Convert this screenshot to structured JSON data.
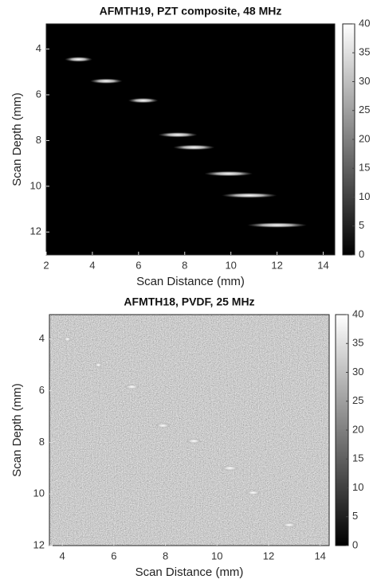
{
  "chart_data": [
    {
      "type": "heatmap",
      "title": "AFMTH19, PZT composite, 48 MHz",
      "x_label": "Scan Distance (mm)",
      "y_label": "Scan Depth (mm)",
      "x": [
        3.4,
        4.6,
        6.2,
        7.7,
        8.4,
        9.9,
        10.8,
        12.0
      ],
      "y": [
        4.45,
        5.4,
        6.25,
        7.75,
        8.3,
        9.45,
        10.4,
        11.7
      ],
      "widths": [
        1.2,
        1.4,
        1.3,
        1.7,
        1.8,
        2.1,
        2.4,
        2.6
      ],
      "xlim": [
        2,
        14.5
      ],
      "xticks": [
        2,
        4,
        6,
        8,
        10,
        12,
        14
      ],
      "ylim": [
        2.9,
        13
      ],
      "yticks": [
        4,
        6,
        8,
        10,
        12
      ],
      "y_reversed": true,
      "clim": [
        0,
        40
      ],
      "cticks": [
        0,
        5,
        10,
        15,
        20,
        25,
        30,
        35,
        40
      ],
      "noise": false
    },
    {
      "type": "heatmap",
      "title": "AFMTH18, PVDF, 25 MHz",
      "x_label": "Scan Distance (mm)",
      "y_label": "Scan Depth (mm)",
      "x": [
        4.2,
        5.4,
        6.7,
        7.9,
        9.1,
        10.5,
        11.4,
        12.8
      ],
      "y": [
        4.0,
        5.0,
        5.85,
        7.35,
        7.95,
        9.0,
        9.95,
        11.2
      ],
      "widths": [
        0.3,
        0.3,
        0.6,
        0.6,
        0.6,
        0.7,
        0.6,
        0.6
      ],
      "xlim": [
        3.5,
        14.35
      ],
      "xticks": [
        4,
        6,
        8,
        10,
        12,
        14
      ],
      "ylim": [
        3.05,
        12
      ],
      "yticks": [
        4,
        6,
        8,
        10,
        12
      ],
      "y_reversed": true,
      "clim": [
        0,
        40
      ],
      "cticks": [
        0,
        5,
        10,
        15,
        20,
        25,
        30,
        35,
        40
      ],
      "noise": true
    }
  ]
}
